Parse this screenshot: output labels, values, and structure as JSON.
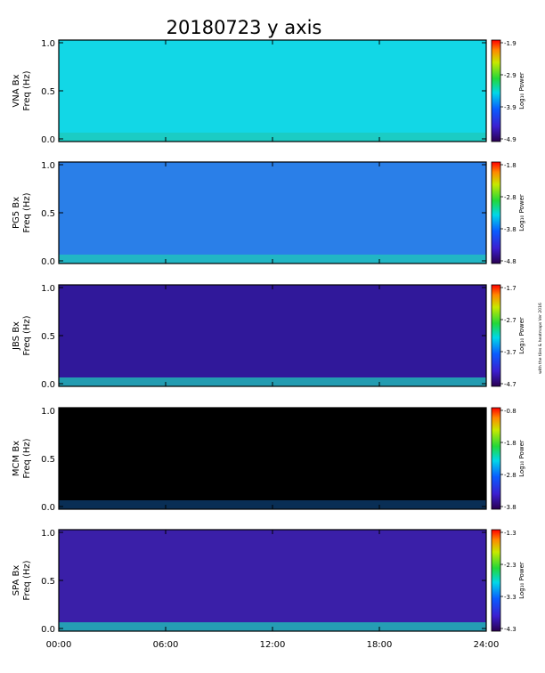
{
  "chart_data": {
    "type": "heatmap",
    "title": "20180723 y axis",
    "x_ticks": [
      "00:00",
      "06:00",
      "12:00",
      "18:00",
      "24:00"
    ],
    "y_ticks": [
      "0.0",
      "0.5",
      "1.0"
    ],
    "side_note": "with the tiles & heatmaps Ver 2016",
    "panels": [
      {
        "ylabel1": "VNA Bx",
        "ylabel2": "Freq (Hz)",
        "colorbar_label": "Log₁₀ Power",
        "colorbar_ticks": [
          "-1.9",
          "-2.9",
          "-3.9",
          "-4.9"
        ],
        "range": [
          -4.9,
          -1.9
        ],
        "background": "#12d7e6",
        "mean_level": 0.6
      },
      {
        "ylabel1": "PG5 Bx",
        "ylabel2": "Freq (Hz)",
        "colorbar_label": "Log₁₀ Power",
        "colorbar_ticks": [
          "-1.8",
          "-2.8",
          "-3.8",
          "-4.8"
        ],
        "range": [
          -4.8,
          -1.8
        ],
        "background": "#2a7fe8",
        "mean_level": 0.5
      },
      {
        "ylabel1": "JBS Bx",
        "ylabel2": "Freq (Hz)",
        "colorbar_label": "Log₁₀ Power",
        "colorbar_ticks": [
          "-1.7",
          "-2.7",
          "-3.7",
          "-4.7"
        ],
        "range": [
          -4.7,
          -1.7
        ],
        "background": "#30189a",
        "mean_level": 0.22
      },
      {
        "ylabel1": "MCM Bx",
        "ylabel2": "Freq (Hz)",
        "colorbar_label": "Log₁₀ Power",
        "colorbar_ticks": [
          "-0.8",
          "-1.8",
          "-2.8",
          "-3.8"
        ],
        "range": [
          -3.8,
          -0.8
        ],
        "background": "#000000",
        "mean_level": 0.0
      },
      {
        "ylabel1": "SPA Bx",
        "ylabel2": "Freq (Hz)",
        "colorbar_label": "Log₁₀ Power",
        "colorbar_ticks": [
          "-1.3",
          "-2.3",
          "-3.3",
          "-4.3"
        ],
        "range": [
          -4.3,
          -1.3
        ],
        "background": "#3a1fa8",
        "mean_level": 0.25
      }
    ]
  }
}
